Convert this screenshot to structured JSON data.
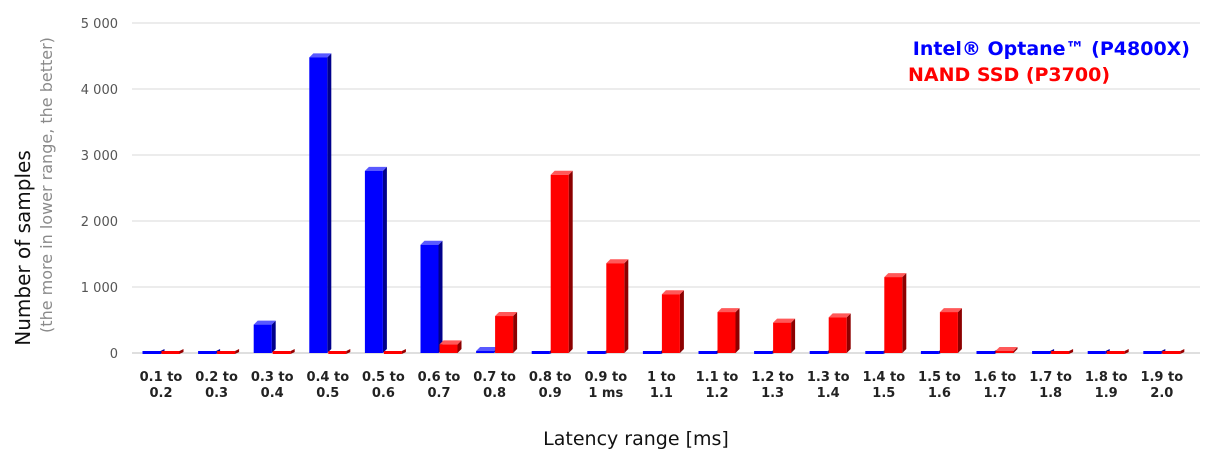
{
  "chart_data": {
    "type": "bar",
    "style": "3d-clustered",
    "xlabel": "Latency range [ms]",
    "ylabel": "Number of samples",
    "ylabel_note": "(the more in lower range, the better)",
    "ylim": [
      0,
      5000
    ],
    "yticks": [
      0,
      1000,
      2000,
      3000,
      4000,
      5000
    ],
    "ytick_labels": [
      "0",
      "1 000",
      "2 000",
      "3 000",
      "4 000",
      "5 000"
    ],
    "grid": true,
    "legend_position": "top-right",
    "categories": [
      [
        "0.1 to",
        "0.2"
      ],
      [
        "0.2 to",
        "0.3"
      ],
      [
        "0.3 to",
        "0.4"
      ],
      [
        "0.4 to",
        "0.5"
      ],
      [
        "0.5 to",
        "0.6"
      ],
      [
        "0.6 to",
        "0.7"
      ],
      [
        "0.7 to",
        "0.8"
      ],
      [
        "0.8 to",
        "0.9"
      ],
      [
        "0.9 to",
        "1 ms"
      ],
      [
        "1 to",
        "1.1"
      ],
      [
        "1.1 to",
        "1.2"
      ],
      [
        "1.2 to",
        "1.3"
      ],
      [
        "1.3 to",
        "1.4"
      ],
      [
        "1.4 to",
        "1.5"
      ],
      [
        "1.5 to",
        "1.6"
      ],
      [
        "1.6 to",
        "1.7"
      ],
      [
        "1.7 to",
        "1.8"
      ],
      [
        "1.8 to",
        "1.9"
      ],
      [
        "1.9 to",
        "2.0"
      ]
    ],
    "series": [
      {
        "name": "Intel® Optane™ (P4800X)",
        "color": "#0000ff",
        "values": [
          0,
          0,
          430,
          4480,
          2760,
          1640,
          30,
          0,
          0,
          0,
          0,
          0,
          0,
          0,
          0,
          0,
          0,
          0,
          0
        ]
      },
      {
        "name": "NAND SSD (P3700)",
        "color": "#ff0000",
        "values": [
          0,
          0,
          0,
          0,
          0,
          130,
          560,
          2700,
          1360,
          890,
          620,
          460,
          540,
          1150,
          620,
          30,
          0,
          0,
          0
        ]
      }
    ]
  }
}
